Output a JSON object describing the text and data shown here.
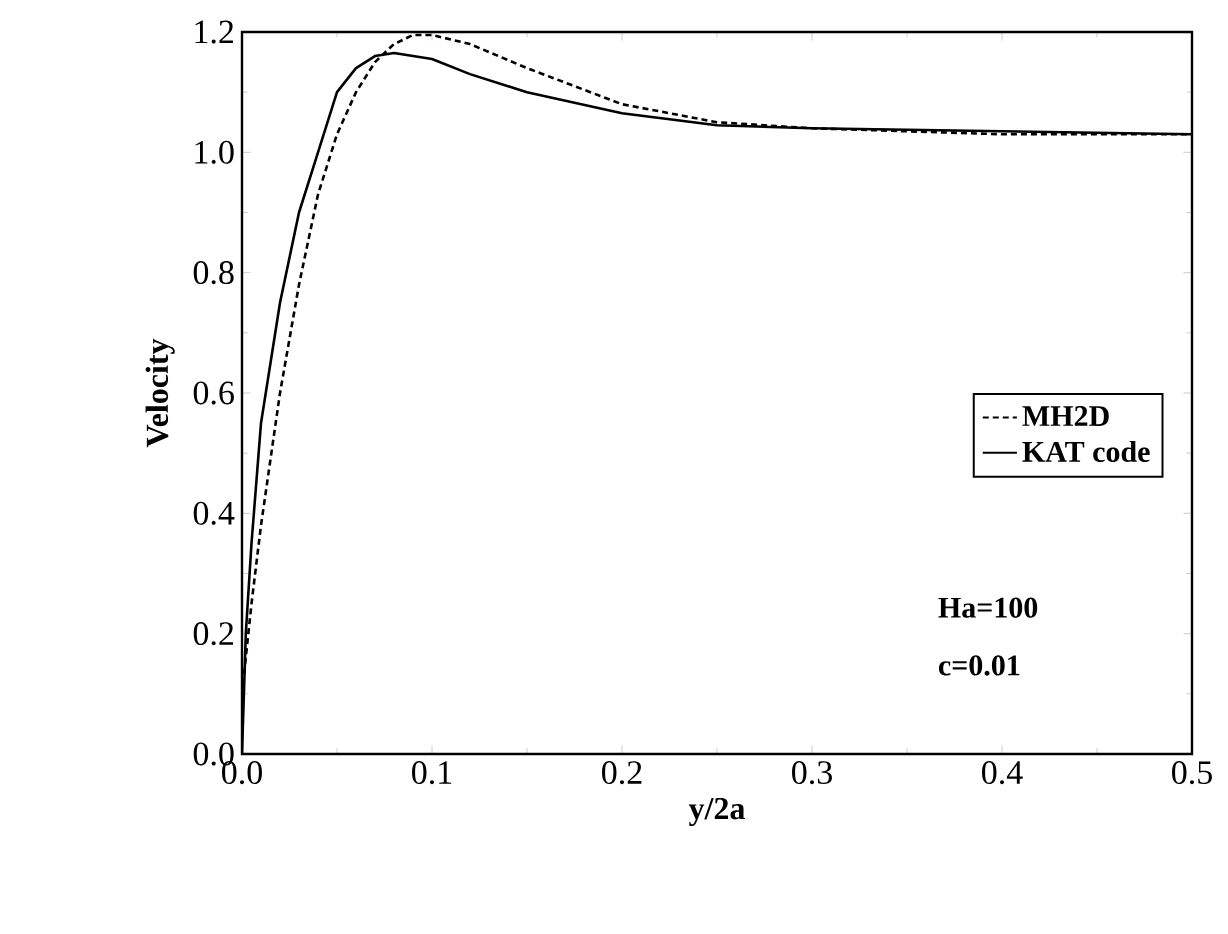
{
  "chart_data": {
    "type": "line",
    "xlabel": "y/2a",
    "ylabel": "Velocity",
    "xlim": [
      0,
      0.5
    ],
    "ylim": [
      0,
      1.2
    ],
    "xticks": [
      {
        "value": 0,
        "label": "0.0"
      },
      0.1,
      0.2,
      0.3,
      0.4,
      0.5
    ],
    "yticks": [
      {
        "value": 0,
        "label": "0.0"
      },
      0.2,
      0.4,
      0.6,
      0.8,
      {
        "value": 1,
        "label": "1.0"
      },
      1.2
    ],
    "legend": "right",
    "grid": false,
    "series": [
      {
        "name": "MH2D",
        "color": "#000000",
        "line_style": "dashed",
        "x": [
          0,
          0.005,
          0.01,
          0.02,
          0.03,
          0.04,
          0.05,
          0.06,
          0.07,
          0.08,
          0.09,
          0.1,
          0.12,
          0.15,
          0.2,
          0.25,
          0.3,
          0.4,
          0.5
        ],
        "values": [
          0.1,
          0.25,
          0.38,
          0.6,
          0.78,
          0.93,
          1.03,
          1.1,
          1.15,
          1.18,
          1.195,
          1.195,
          1.18,
          1.14,
          1.08,
          1.05,
          1.04,
          1.03,
          1.03
        ]
      },
      {
        "name": "KAT code",
        "color": "#000000",
        "line_style": "solid",
        "x": [
          0,
          0.002,
          0.005,
          0.01,
          0.02,
          0.03,
          0.04,
          0.05,
          0.06,
          0.07,
          0.08,
          0.1,
          0.12,
          0.15,
          0.2,
          0.25,
          0.3,
          0.4,
          0.5
        ],
        "values": [
          0,
          0.2,
          0.35,
          0.55,
          0.75,
          0.9,
          1.0,
          1.1,
          1.14,
          1.16,
          1.165,
          1.155,
          1.13,
          1.1,
          1.065,
          1.045,
          1.04,
          1.035,
          1.03
        ]
      }
    ],
    "annotations": [
      "Ha=100",
      "c=0.01"
    ]
  }
}
